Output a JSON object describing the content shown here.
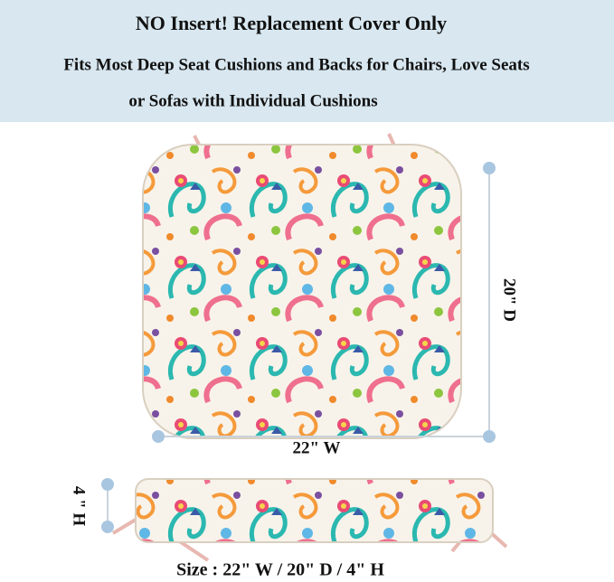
{
  "header": {
    "title": "NO Insert! Replacement Cover Only",
    "subtitle_lines": [
      "Fits Most Deep Seat Cushions and Backs for Chairs, Love Seats",
      "or Sofas with Individual Cushions"
    ]
  },
  "dimensions": {
    "depth": "20\" D",
    "width": "22\" W",
    "height": "4 \" H"
  },
  "size_caption": "Size : 22\" W / 20\" D / 4\" H"
}
